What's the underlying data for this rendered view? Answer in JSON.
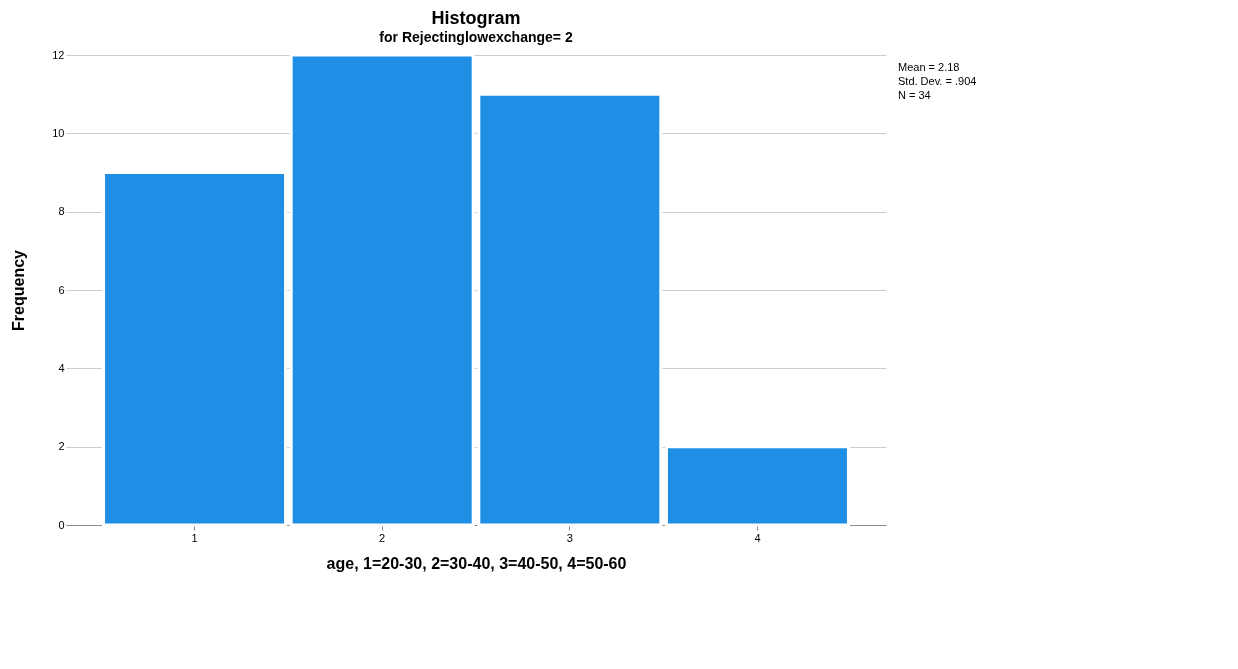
{
  "chart_data": {
    "type": "bar",
    "title": "Histogram",
    "subtitle": "for Rejectinglowexchange= 2",
    "xlabel": "age, 1=20-30, 2=30-40, 3=40-50, 4=50-60",
    "ylabel": "Frequency",
    "categories": [
      "1",
      "2",
      "3",
      "4"
    ],
    "values": [
      9,
      12,
      11,
      2
    ],
    "color": "#1f8fe5",
    "ylim": [
      0,
      12
    ],
    "yticks": [
      0,
      2,
      4,
      6,
      8,
      10,
      12
    ],
    "grid": "y",
    "annotations": [
      "Mean = 2.18",
      "Std. Dev. = .904",
      "N = 34"
    ]
  }
}
